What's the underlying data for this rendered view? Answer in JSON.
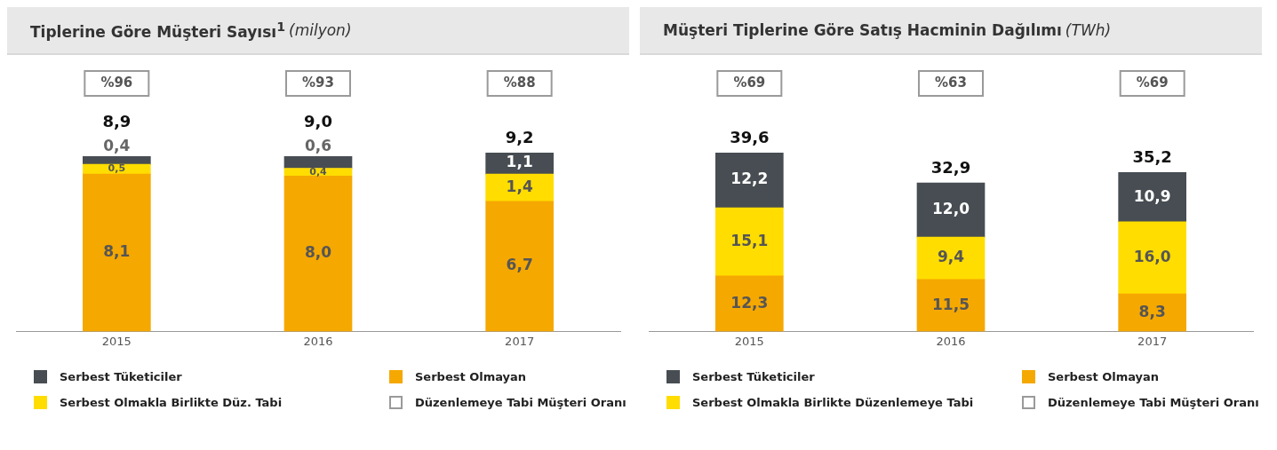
{
  "chart_data": [
    {
      "type": "bar",
      "title": "Tiplerine Göre Müşteri Sayısı$^{1}$",
      "subtitle": "(milyon)",
      "categories": [
        "2015",
        "2016",
        "2017"
      ],
      "stacked": true,
      "legend": "bottom",
      "totals": [
        "8,9",
        "9,0",
        "9,2"
      ],
      "series": [
        {
          "name": "Serbest Olmayan",
          "color": "#f5a800",
          "values": [
            8.1,
            8.0,
            6.7
          ],
          "value_labels": [
            "8,1",
            "8,0",
            "6,7"
          ]
        },
        {
          "name": "Serbest Olmakla Birlikte Düz. Tabi",
          "color": "#ffdd00",
          "values": [
            0.5,
            0.4,
            1.4
          ],
          "value_labels": [
            "0,5",
            "0,4",
            "1,4"
          ]
        },
        {
          "name": "Serbest Tüketiciler",
          "color": "#474d52",
          "values": [
            0.4,
            0.6,
            1.1
          ],
          "value_labels": [
            "0,4",
            "0,6",
            "1,1"
          ]
        }
      ],
      "annotations": [
        "%96",
        "%93",
        "%88",
        "Düzenlemeye Tabi Müşteri Oranı"
      ]
    },
    {
      "type": "bar",
      "title": "Müşteri Tiplerine Göre Satış Hacminin Dağılımı",
      "subtitle": "(TWh)",
      "categories": [
        "2015",
        "2016",
        "2017"
      ],
      "stacked": true,
      "legend": "bottom",
      "totals": [
        "39,6",
        "32,9",
        "35,2"
      ],
      "series": [
        {
          "name": "Serbest Olmayan",
          "color": "#f5a800",
          "values": [
            12.3,
            11.5,
            8.3
          ],
          "value_labels": [
            "12,3",
            "11,5",
            "8,3"
          ]
        },
        {
          "name": "Serbest Olmakla Birlikte Düzenlemeye Tabi",
          "color": "#ffdd00",
          "values": [
            15.1,
            9.4,
            16.0
          ],
          "value_labels": [
            "15,1",
            "9,4",
            "16,0"
          ]
        },
        {
          "name": "Serbest Tüketiciler",
          "color": "#474d52",
          "values": [
            12.2,
            12.0,
            10.9
          ],
          "value_labels": [
            "12,2",
            "12,0",
            "10,9"
          ]
        }
      ],
      "annotations": [
        "%69",
        "%63",
        "%69",
        "Düzenlemeye Tabi Müşteri Oranı"
      ]
    }
  ]
}
